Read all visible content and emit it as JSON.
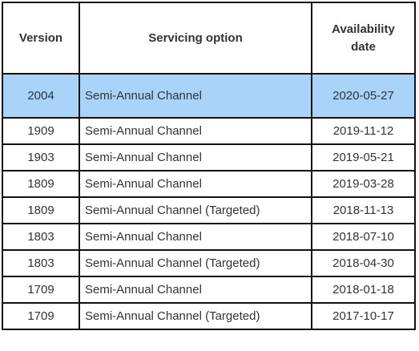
{
  "table": {
    "headers": [
      "Version",
      "Servicing option",
      "Availability date"
    ],
    "header_lines": {
      "version": "Version",
      "servicing": "Servicing option",
      "availability_line1": "Availability",
      "availability_line2": "date"
    },
    "highlight_color": "#a9d3f9",
    "rows": [
      {
        "version": "2004",
        "servicing": "Semi-Annual Channel",
        "date": "2020-05-27"
      },
      {
        "version": "1909",
        "servicing": "Semi-Annual Channel",
        "date": "2019-11-12"
      },
      {
        "version": "1903",
        "servicing": "Semi-Annual Channel",
        "date": "2019-05-21"
      },
      {
        "version": "1809",
        "servicing": "Semi-Annual Channel",
        "date": "2019-03-28"
      },
      {
        "version": "1809",
        "servicing": "Semi-Annual Channel (Targeted)",
        "date": "2018-11-13"
      },
      {
        "version": "1803",
        "servicing": "Semi-Annual Channel",
        "date": "2018-07-10"
      },
      {
        "version": "1803",
        "servicing": "Semi-Annual Channel (Targeted)",
        "date": "2018-04-30"
      },
      {
        "version": "1709",
        "servicing": "Semi-Annual Channel",
        "date": "2018-01-18"
      },
      {
        "version": "1709",
        "servicing": "Semi-Annual Channel (Targeted)",
        "date": "2017-10-17"
      }
    ]
  }
}
